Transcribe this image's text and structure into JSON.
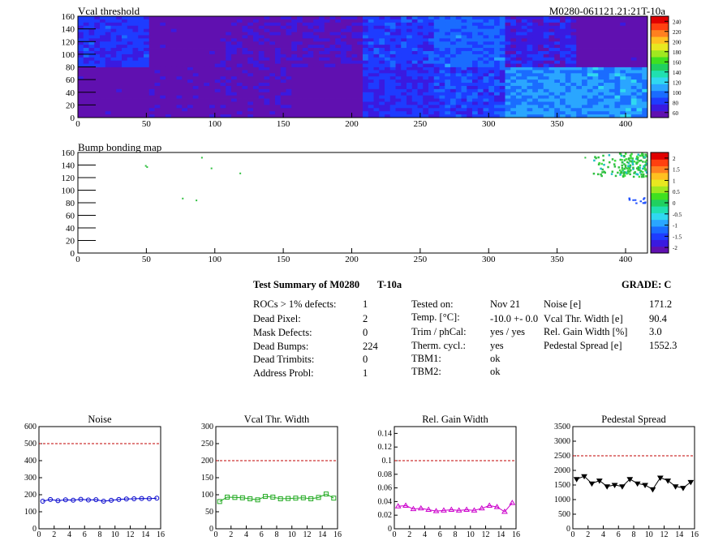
{
  "top_map": {
    "title": "Vcal threshold",
    "id_label": "M0280-061121.21:21T-10a",
    "palette_labels": [
      "240",
      "220",
      "200",
      "180",
      "160",
      "140",
      "120",
      "100",
      "80",
      "60"
    ]
  },
  "bump_map": {
    "title": "Bump bonding map",
    "palette_labels": [
      "2",
      "1.5",
      "1",
      "0.5",
      "0",
      "-0.5",
      "-1",
      "-1.5",
      "-2"
    ]
  },
  "summary": {
    "title": "Test Summary of M0280",
    "test_label": "T-10a",
    "grade": "GRADE:  C",
    "col1": [
      {
        "label": "ROCs > 1% defects:",
        "value": "1"
      },
      {
        "label": "Dead Pixel:",
        "value": "2"
      },
      {
        "label": "Mask Defects:",
        "value": "0"
      },
      {
        "label": "Dead Bumps:",
        "value": "224"
      },
      {
        "label": "Dead Trimbits:",
        "value": "0"
      },
      {
        "label": "Address Probl:",
        "value": "1"
      }
    ],
    "col2": [
      {
        "label": "Tested on:",
        "value": "Nov 21"
      },
      {
        "label": "Temp. [°C]:",
        "value": "-10.0 +- 0.0"
      },
      {
        "label": "Trim / phCal:",
        "value": "yes / yes"
      },
      {
        "label": "Therm. cycl.:",
        "value": "yes"
      },
      {
        "label": "TBM1:",
        "value": "ok"
      },
      {
        "label": "TBM2:",
        "value": "ok"
      }
    ],
    "col3": [
      {
        "label": "Noise [e]",
        "value": "171.2"
      },
      {
        "label": "Vcal Thr. Width [e]",
        "value": "90.4"
      },
      {
        "label": "Rel. Gain Width [%]",
        "value": "3.0"
      },
      {
        "label": "Pedestal Spread [e]",
        "value": "1552.3"
      }
    ]
  },
  "chart_data": [
    {
      "type": "heatmap",
      "title": "Vcal threshold",
      "xlim": [
        0,
        416
      ],
      "ylim": [
        0,
        160
      ],
      "x_ticks": [
        0,
        50,
        100,
        150,
        200,
        250,
        300,
        350,
        400
      ],
      "y_ticks": [
        0,
        20,
        40,
        60,
        80,
        100,
        120,
        140,
        160
      ],
      "zlim": [
        60,
        250
      ],
      "colorbar_ticks": [
        60,
        80,
        100,
        120,
        140,
        160,
        180,
        200,
        220,
        240
      ],
      "roc_levels_bottom": [
        62,
        64,
        66,
        62,
        85,
        92,
        112,
        114
      ],
      "roc_levels_top": [
        88,
        62,
        68,
        70,
        90,
        100,
        80,
        62
      ]
    },
    {
      "type": "heatmap",
      "title": "Bump bonding map",
      "xlim": [
        0,
        416
      ],
      "ylim": [
        0,
        160
      ],
      "x_ticks": [
        0,
        50,
        100,
        150,
        200,
        250,
        300,
        350,
        400
      ],
      "y_ticks": [
        0,
        20,
        40,
        60,
        80,
        100,
        120,
        140,
        160
      ],
      "zlim": [
        -2,
        2
      ],
      "colorbar_ticks": [
        -2,
        -1.5,
        -1,
        -0.5,
        0,
        0.5,
        1,
        1.5,
        2
      ]
    },
    {
      "type": "line",
      "title": "Noise",
      "x": [
        0,
        1,
        2,
        3,
        4,
        5,
        6,
        7,
        8,
        9,
        10,
        11,
        12,
        13,
        14,
        15
      ],
      "values": [
        162,
        172,
        165,
        170,
        168,
        173,
        169,
        171,
        162,
        167,
        172,
        175,
        176,
        178,
        177,
        180
      ],
      "xlim": [
        0,
        16
      ],
      "ylim": [
        0,
        600
      ],
      "x_ticks": [
        0,
        2,
        4,
        6,
        8,
        10,
        12,
        14,
        16
      ],
      "y_ticks": [
        0,
        100,
        200,
        300,
        400,
        500,
        600
      ],
      "threshold": 500,
      "color": "#0000cc",
      "marker": "circle"
    },
    {
      "type": "line",
      "title": "Vcal Thr. Width",
      "x": [
        0,
        1,
        2,
        3,
        4,
        5,
        6,
        7,
        8,
        9,
        10,
        11,
        12,
        13,
        14,
        15
      ],
      "values": [
        80,
        93,
        92,
        91,
        88,
        85,
        95,
        93,
        88,
        89,
        90,
        91,
        88,
        92,
        102,
        90
      ],
      "xlim": [
        0,
        16
      ],
      "ylim": [
        0,
        300
      ],
      "x_ticks": [
        0,
        2,
        4,
        6,
        8,
        10,
        12,
        14,
        16
      ],
      "y_ticks": [
        0,
        50,
        100,
        150,
        200,
        250,
        300
      ],
      "threshold": 200,
      "color": "#22aa22",
      "marker": "square"
    },
    {
      "type": "line",
      "title": "Rel. Gain Width",
      "x": [
        0,
        1,
        2,
        3,
        4,
        5,
        6,
        7,
        8,
        9,
        10,
        11,
        12,
        13,
        14,
        15
      ],
      "values": [
        0.033,
        0.034,
        0.029,
        0.03,
        0.028,
        0.026,
        0.027,
        0.028,
        0.027,
        0.028,
        0.027,
        0.03,
        0.034,
        0.032,
        0.025,
        0.038
      ],
      "xlim": [
        0,
        16
      ],
      "ylim": [
        0,
        0.15
      ],
      "x_ticks": [
        0,
        2,
        4,
        6,
        8,
        10,
        12,
        14,
        16
      ],
      "y_ticks": [
        0,
        0.02,
        0.04,
        0.06,
        0.08,
        0.1,
        0.12,
        0.14
      ],
      "threshold": 0.1,
      "color": "#cc00cc",
      "marker": "triangle"
    },
    {
      "type": "line",
      "title": "Pedestal Spread",
      "x": [
        0,
        1,
        2,
        3,
        4,
        5,
        6,
        7,
        8,
        9,
        10,
        11,
        12,
        13,
        14,
        15
      ],
      "values": [
        1700,
        1800,
        1550,
        1650,
        1450,
        1500,
        1450,
        1700,
        1550,
        1500,
        1350,
        1750,
        1650,
        1450,
        1400,
        1600
      ],
      "xlim": [
        0,
        16
      ],
      "ylim": [
        0,
        3500
      ],
      "x_ticks": [
        0,
        2,
        4,
        6,
        8,
        10,
        12,
        14,
        16
      ],
      "y_ticks": [
        0,
        500,
        1000,
        1500,
        2000,
        2500,
        3000,
        3500
      ],
      "threshold": 2500,
      "color": "#000000",
      "marker": "triangle-down"
    }
  ]
}
